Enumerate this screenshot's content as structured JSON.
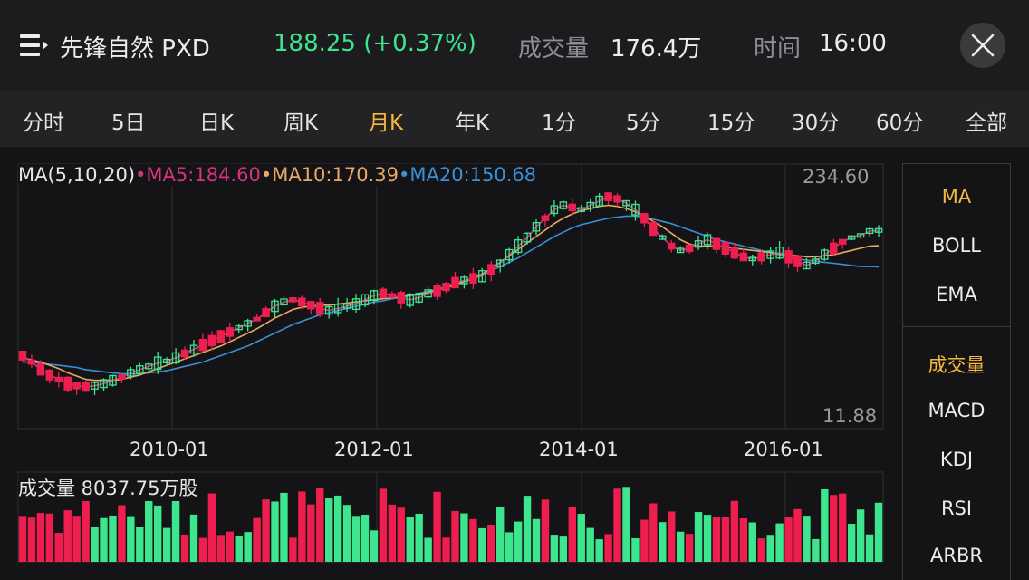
{
  "header": {
    "stock_name": "先锋自然 PXD",
    "price": "188.25 (+0.37%)",
    "volume_label": "成交量",
    "volume_value": "176.4万",
    "time_label": "时间",
    "time_value": "16:00",
    "icons": [
      "menu-icon",
      "close-icon"
    ]
  },
  "tabs": [
    {
      "label": "分时",
      "active": false
    },
    {
      "label": "5日",
      "active": false
    },
    {
      "label": "日K",
      "active": false
    },
    {
      "label": "周K",
      "active": false
    },
    {
      "label": "月K",
      "active": true
    },
    {
      "label": "年K",
      "active": false
    },
    {
      "label": "1分",
      "active": false
    },
    {
      "label": "5分",
      "active": false
    },
    {
      "label": "15分",
      "active": false
    },
    {
      "label": "30分",
      "active": false
    },
    {
      "label": "60分",
      "active": false
    },
    {
      "label": "全部",
      "active": false
    }
  ],
  "legend": {
    "ma_label": "MA(5,10,20)",
    "ma5": "•MA5:184.60",
    "ma10": "•MA10:170.39",
    "ma20": "•MA20:150.68"
  },
  "volume_legend": "成交量  8037.75万股",
  "side_panel": {
    "main_indicators": [
      "MA",
      "BOLL",
      "EMA"
    ],
    "sub_indicators": [
      "成交量",
      "MACD",
      "KDJ",
      "RSI",
      "ARBR"
    ],
    "active_main": "MA",
    "active_sub": "成交量"
  },
  "colors": {
    "up": "#3ee58f",
    "down": "#ee1f4f",
    "ma5": "#d6327f",
    "ma10": "#e9a866",
    "ma20": "#3b8fd6",
    "active": "#f6b93b"
  },
  "chart_data": {
    "type": "candlestick",
    "y_axis_max_label": "234.60",
    "y_axis_min_label": "11.88",
    "x_tick_labels": [
      "2010-01",
      "2012-01",
      "2014-01",
      "2016-01"
    ],
    "period": "monthly",
    "ma5_series": [
      68,
      62,
      55,
      50,
      46,
      42,
      40,
      39,
      40,
      42,
      45,
      48,
      52,
      55,
      58,
      61,
      63,
      66,
      70,
      74,
      78,
      82,
      86,
      90,
      94,
      98,
      102,
      108,
      114,
      118,
      120,
      118,
      115,
      112,
      110,
      112,
      114,
      116,
      120,
      124,
      126,
      124,
      122,
      120,
      122,
      126,
      128,
      132,
      136,
      138,
      140,
      142,
      148,
      154,
      162,
      170,
      178,
      188,
      196,
      204,
      208,
      206,
      204,
      208,
      212,
      216,
      214,
      210,
      204,
      196,
      186,
      178,
      170,
      166,
      168,
      172,
      176,
      172,
      168,
      164,
      160,
      158,
      160,
      162,
      164,
      160,
      156,
      152,
      156,
      162,
      168,
      174,
      178,
      180,
      184,
      184.6
    ],
    "ma10_series": [
      66,
      64,
      62,
      59,
      56,
      52,
      49,
      46,
      45,
      45,
      45,
      46,
      48,
      50,
      53,
      56,
      59,
      62,
      65,
      68,
      71,
      74,
      77,
      81,
      85,
      89,
      93,
      98,
      103,
      107,
      111,
      113,
      114,
      115,
      115,
      116,
      117,
      118,
      119,
      120,
      121,
      122,
      123,
      124,
      125,
      127,
      129,
      131,
      134,
      137,
      140,
      144,
      149,
      155,
      161,
      167,
      173,
      179,
      185,
      191,
      196,
      200,
      203,
      205,
      207,
      208,
      207,
      205,
      202,
      198,
      193,
      188,
      182,
      176,
      172,
      170,
      170,
      170,
      169,
      168,
      167,
      166,
      165,
      164,
      163,
      162,
      161,
      160,
      160,
      161,
      162,
      164,
      166,
      168,
      170,
      170.39
    ],
    "ma20_series": [
      62,
      62,
      61,
      60,
      59,
      58,
      57,
      55,
      54,
      53,
      52,
      51,
      51,
      51,
      52,
      53,
      54,
      56,
      58,
      60,
      62,
      65,
      68,
      71,
      74,
      77,
      81,
      85,
      89,
      93,
      97,
      100,
      103,
      106,
      108,
      110,
      112,
      114,
      116,
      118,
      119,
      121,
      122,
      124,
      126,
      128,
      130,
      132,
      134,
      137,
      140,
      143,
      147,
      151,
      155,
      159,
      164,
      169,
      174,
      179,
      183,
      187,
      190,
      192,
      194,
      196,
      197,
      198,
      198,
      197,
      195,
      193,
      191,
      188,
      185,
      182,
      179,
      176,
      174,
      172,
      170,
      168,
      166,
      164,
      162,
      160,
      158,
      157,
      156,
      155,
      154,
      153,
      152,
      151,
      151,
      150.68
    ]
  }
}
